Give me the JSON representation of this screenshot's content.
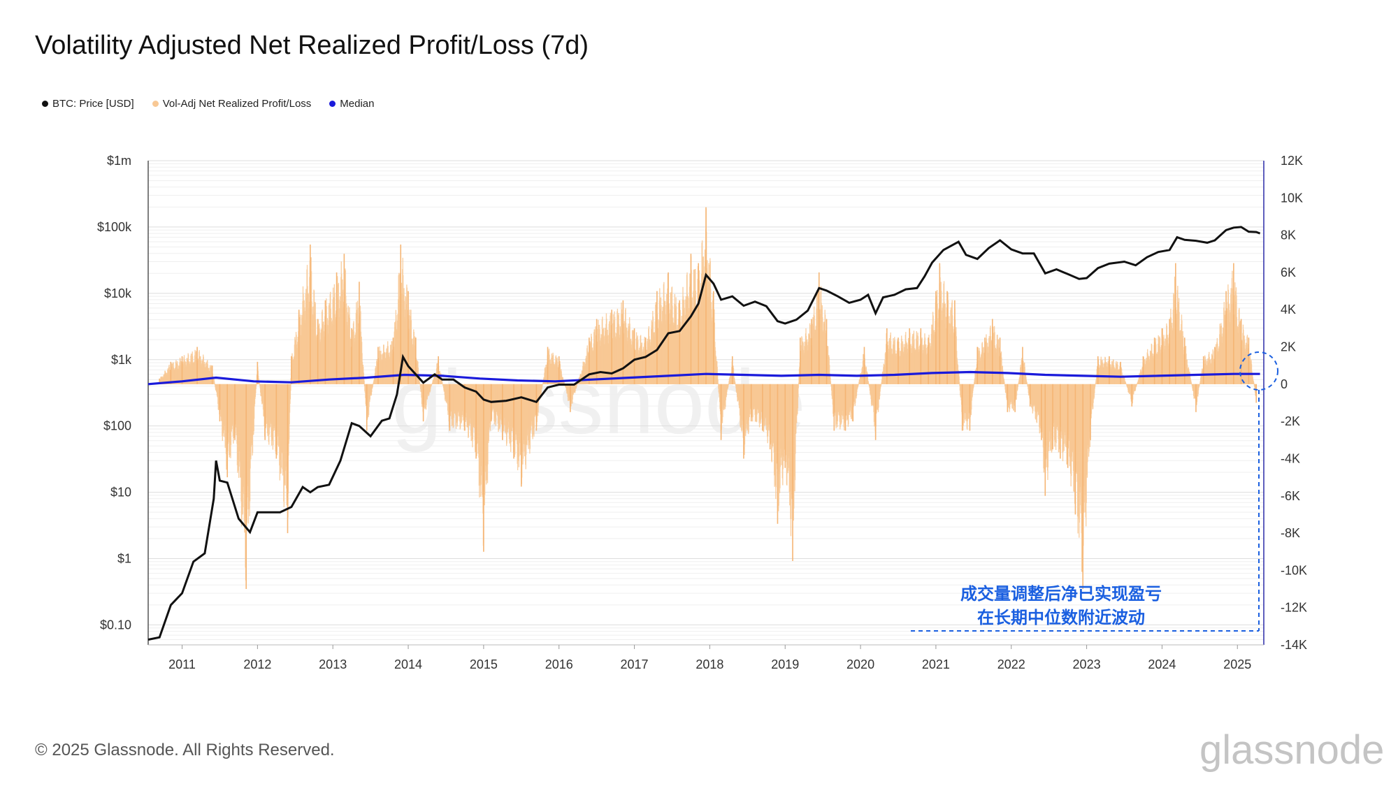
{
  "title": "Volatility Adjusted Net Realized Profit/Loss (7d)",
  "legend": [
    {
      "label": "BTC: Price [USD]",
      "color": "#111111"
    },
    {
      "label": "Vol-Adj Net Realized Profit/Loss",
      "color": "#f8c894"
    },
    {
      "label": "Median",
      "color": "#1a1adb"
    }
  ],
  "footer": "© 2025 Glassnode. All Rights Reserved.",
  "brand": "glassnode",
  "watermark": "glassnode",
  "annotation": {
    "line1": "成交量调整后净已实现盈亏",
    "line2": "在长期中位数附近波动",
    "color": "#1a5fe0"
  },
  "chart_data": {
    "type": "line",
    "title": "Volatility Adjusted Net Realized Profit/Loss (7d)",
    "x_range": [
      2010.55,
      2025.35
    ],
    "x_ticks": [
      "2011",
      "2012",
      "2013",
      "2014",
      "2015",
      "2016",
      "2017",
      "2018",
      "2019",
      "2020",
      "2021",
      "2022",
      "2023",
      "2024",
      "2025"
    ],
    "y_left": {
      "scale": "log",
      "range": [
        0.05,
        1000000
      ],
      "ticks": [
        {
          "value": 0.1,
          "label": "$0.10"
        },
        {
          "value": 1,
          "label": "$1"
        },
        {
          "value": 10,
          "label": "$10"
        },
        {
          "value": 100,
          "label": "$100"
        },
        {
          "value": 1000,
          "label": "$1k"
        },
        {
          "value": 10000,
          "label": "$10k"
        },
        {
          "value": 100000,
          "label": "$100k"
        },
        {
          "value": 1000000,
          "label": "$1m"
        }
      ]
    },
    "y_right": {
      "scale": "linear",
      "range": [
        -14000,
        12000
      ],
      "ticks": [
        {
          "value": 12000,
          "label": "12K"
        },
        {
          "value": 10000,
          "label": "10K"
        },
        {
          "value": 8000,
          "label": "8K"
        },
        {
          "value": 6000,
          "label": "6K"
        },
        {
          "value": 4000,
          "label": "4K"
        },
        {
          "value": 2000,
          "label": "2K"
        },
        {
          "value": 0,
          "label": "0"
        },
        {
          "value": -2000,
          "label": "-2K"
        },
        {
          "value": -4000,
          "label": "-4K"
        },
        {
          "value": -6000,
          "label": "-6K"
        },
        {
          "value": -8000,
          "label": "-8K"
        },
        {
          "value": -10000,
          "label": "-10K"
        },
        {
          "value": -12000,
          "label": "-12K"
        },
        {
          "value": -14000,
          "label": "-14K"
        }
      ]
    },
    "series": [
      {
        "name": "BTC: Price [USD]",
        "axis": "left",
        "color": "#111111",
        "points": [
          [
            2010.55,
            0.06
          ],
          [
            2010.7,
            0.065
          ],
          [
            2010.85,
            0.2
          ],
          [
            2011.0,
            0.3
          ],
          [
            2011.15,
            0.9
          ],
          [
            2011.3,
            1.2
          ],
          [
            2011.42,
            8
          ],
          [
            2011.45,
            30
          ],
          [
            2011.5,
            15
          ],
          [
            2011.6,
            14
          ],
          [
            2011.75,
            4
          ],
          [
            2011.9,
            2.5
          ],
          [
            2012.0,
            5
          ],
          [
            2012.15,
            5
          ],
          [
            2012.3,
            5
          ],
          [
            2012.45,
            6
          ],
          [
            2012.6,
            12
          ],
          [
            2012.7,
            10
          ],
          [
            2012.8,
            12
          ],
          [
            2012.95,
            13
          ],
          [
            2013.1,
            30
          ],
          [
            2013.25,
            110
          ],
          [
            2013.35,
            100
          ],
          [
            2013.5,
            70
          ],
          [
            2013.65,
            120
          ],
          [
            2013.75,
            130
          ],
          [
            2013.85,
            300
          ],
          [
            2013.93,
            1100
          ],
          [
            2014.0,
            800
          ],
          [
            2014.1,
            600
          ],
          [
            2014.2,
            450
          ],
          [
            2014.35,
            600
          ],
          [
            2014.45,
            500
          ],
          [
            2014.6,
            500
          ],
          [
            2014.75,
            380
          ],
          [
            2014.9,
            330
          ],
          [
            2015.0,
            250
          ],
          [
            2015.1,
            230
          ],
          [
            2015.3,
            240
          ],
          [
            2015.5,
            270
          ],
          [
            2015.7,
            230
          ],
          [
            2015.85,
            380
          ],
          [
            2016.0,
            420
          ],
          [
            2016.2,
            420
          ],
          [
            2016.4,
            600
          ],
          [
            2016.55,
            650
          ],
          [
            2016.7,
            620
          ],
          [
            2016.85,
            740
          ],
          [
            2017.0,
            1000
          ],
          [
            2017.15,
            1100
          ],
          [
            2017.3,
            1400
          ],
          [
            2017.45,
            2500
          ],
          [
            2017.6,
            2700
          ],
          [
            2017.75,
            4500
          ],
          [
            2017.85,
            7000
          ],
          [
            2017.95,
            19000
          ],
          [
            2018.05,
            14000
          ],
          [
            2018.15,
            8000
          ],
          [
            2018.3,
            9000
          ],
          [
            2018.45,
            6500
          ],
          [
            2018.6,
            7500
          ],
          [
            2018.75,
            6400
          ],
          [
            2018.9,
            3800
          ],
          [
            2019.0,
            3500
          ],
          [
            2019.15,
            4000
          ],
          [
            2019.3,
            5500
          ],
          [
            2019.45,
            12000
          ],
          [
            2019.55,
            11000
          ],
          [
            2019.7,
            9000
          ],
          [
            2019.85,
            7200
          ],
          [
            2020.0,
            8000
          ],
          [
            2020.1,
            9500
          ],
          [
            2020.2,
            5000
          ],
          [
            2020.3,
            8700
          ],
          [
            2020.45,
            9500
          ],
          [
            2020.6,
            11500
          ],
          [
            2020.75,
            12000
          ],
          [
            2020.85,
            18000
          ],
          [
            2020.95,
            29000
          ],
          [
            2021.1,
            45000
          ],
          [
            2021.3,
            60000
          ],
          [
            2021.4,
            38000
          ],
          [
            2021.55,
            33000
          ],
          [
            2021.7,
            48000
          ],
          [
            2021.85,
            63000
          ],
          [
            2022.0,
            46000
          ],
          [
            2022.15,
            40000
          ],
          [
            2022.3,
            40000
          ],
          [
            2022.45,
            20000
          ],
          [
            2022.6,
            23000
          ],
          [
            2022.75,
            19500
          ],
          [
            2022.9,
            16500
          ],
          [
            2023.0,
            17000
          ],
          [
            2023.15,
            24000
          ],
          [
            2023.3,
            28000
          ],
          [
            2023.5,
            30000
          ],
          [
            2023.65,
            26500
          ],
          [
            2023.8,
            35000
          ],
          [
            2023.95,
            42000
          ],
          [
            2024.1,
            45000
          ],
          [
            2024.2,
            70000
          ],
          [
            2024.3,
            64000
          ],
          [
            2024.45,
            62000
          ],
          [
            2024.6,
            58000
          ],
          [
            2024.7,
            63000
          ],
          [
            2024.85,
            90000
          ],
          [
            2024.95,
            98000
          ],
          [
            2025.05,
            100000
          ],
          [
            2025.15,
            85000
          ],
          [
            2025.25,
            84000
          ],
          [
            2025.3,
            80000
          ]
        ]
      },
      {
        "name": "Vol-Adj Net Realized Profit/Loss",
        "axis": "right",
        "color": "#f8c894",
        "render": "bars",
        "points": [
          [
            2010.7,
            300
          ],
          [
            2010.85,
            1200
          ],
          [
            2011.0,
            1500
          ],
          [
            2011.2,
            2000
          ],
          [
            2011.4,
            1000
          ],
          [
            2011.5,
            -2000
          ],
          [
            2011.6,
            -5000
          ],
          [
            2011.7,
            -3000
          ],
          [
            2011.85,
            -11000
          ],
          [
            2012.0,
            1200
          ],
          [
            2012.1,
            -3000
          ],
          [
            2012.25,
            -4000
          ],
          [
            2012.4,
            -8000
          ],
          [
            2012.45,
            1500
          ],
          [
            2012.55,
            4000
          ],
          [
            2012.7,
            7500
          ],
          [
            2012.8,
            3500
          ],
          [
            2012.9,
            4500
          ],
          [
            2013.05,
            6000
          ],
          [
            2013.15,
            7000
          ],
          [
            2013.25,
            3000
          ],
          [
            2013.35,
            5500
          ],
          [
            2013.45,
            -2500
          ],
          [
            2013.6,
            2000
          ],
          [
            2013.8,
            2500
          ],
          [
            2013.9,
            7500
          ],
          [
            2014.0,
            5000
          ],
          [
            2014.1,
            2500
          ],
          [
            2014.2,
            -2000
          ],
          [
            2014.4,
            1500
          ],
          [
            2014.55,
            -2500
          ],
          [
            2014.75,
            -2500
          ],
          [
            2014.9,
            -4000
          ],
          [
            2015.0,
            -9000
          ],
          [
            2015.1,
            -2000
          ],
          [
            2015.25,
            -3000
          ],
          [
            2015.4,
            -4000
          ],
          [
            2015.5,
            -5500
          ],
          [
            2015.7,
            -2500
          ],
          [
            2015.85,
            2000
          ],
          [
            2016.0,
            1500
          ],
          [
            2016.15,
            -1500
          ],
          [
            2016.4,
            2500
          ],
          [
            2016.5,
            3500
          ],
          [
            2016.7,
            4000
          ],
          [
            2016.85,
            4500
          ],
          [
            2017.0,
            3000
          ],
          [
            2017.15,
            2500
          ],
          [
            2017.3,
            5000
          ],
          [
            2017.45,
            6000
          ],
          [
            2017.6,
            4500
          ],
          [
            2017.75,
            7000
          ],
          [
            2017.85,
            6500
          ],
          [
            2017.95,
            9500
          ],
          [
            2018.05,
            5000
          ],
          [
            2018.15,
            -3000
          ],
          [
            2018.3,
            1500
          ],
          [
            2018.45,
            -4000
          ],
          [
            2018.55,
            -2000
          ],
          [
            2018.7,
            -2500
          ],
          [
            2018.8,
            -3500
          ],
          [
            2018.9,
            -7500
          ],
          [
            2019.0,
            -4500
          ],
          [
            2019.1,
            -9500
          ],
          [
            2019.2,
            2500
          ],
          [
            2019.35,
            3500
          ],
          [
            2019.45,
            6000
          ],
          [
            2019.55,
            3500
          ],
          [
            2019.65,
            -2500
          ],
          [
            2019.8,
            -2500
          ],
          [
            2019.9,
            -2000
          ],
          [
            2020.05,
            2000
          ],
          [
            2020.2,
            -3000
          ],
          [
            2020.35,
            3000
          ],
          [
            2020.5,
            2500
          ],
          [
            2020.65,
            3000
          ],
          [
            2020.8,
            3000
          ],
          [
            2020.9,
            2500
          ],
          [
            2021.0,
            5000
          ],
          [
            2021.05,
            6500
          ],
          [
            2021.15,
            5000
          ],
          [
            2021.25,
            4500
          ],
          [
            2021.35,
            -2500
          ],
          [
            2021.45,
            -2500
          ],
          [
            2021.55,
            2000
          ],
          [
            2021.65,
            2500
          ],
          [
            2021.75,
            3500
          ],
          [
            2021.85,
            2500
          ],
          [
            2021.95,
            -1500
          ],
          [
            2022.05,
            -1500
          ],
          [
            2022.15,
            2000
          ],
          [
            2022.25,
            -1200
          ],
          [
            2022.4,
            -3000
          ],
          [
            2022.45,
            -6000
          ],
          [
            2022.55,
            -3500
          ],
          [
            2022.65,
            -4000
          ],
          [
            2022.75,
            -4500
          ],
          [
            2022.85,
            -7000
          ],
          [
            2022.95,
            -11000
          ],
          [
            2023.05,
            -3000
          ],
          [
            2023.15,
            1500
          ],
          [
            2023.3,
            1500
          ],
          [
            2023.45,
            1200
          ],
          [
            2023.6,
            -1200
          ],
          [
            2023.75,
            1500
          ],
          [
            2023.9,
            2500
          ],
          [
            2024.0,
            3000
          ],
          [
            2024.1,
            3500
          ],
          [
            2024.18,
            6500
          ],
          [
            2024.3,
            2500
          ],
          [
            2024.45,
            -1500
          ],
          [
            2024.55,
            1500
          ],
          [
            2024.7,
            2000
          ],
          [
            2024.85,
            5000
          ],
          [
            2024.95,
            6500
          ],
          [
            2025.05,
            3500
          ],
          [
            2025.15,
            2500
          ],
          [
            2025.25,
            -1000
          ]
        ]
      },
      {
        "name": "Median",
        "axis": "right",
        "color": "#1a1adb",
        "points": [
          [
            2010.55,
            0
          ],
          [
            2011.0,
            150
          ],
          [
            2011.45,
            350
          ],
          [
            2011.95,
            150
          ],
          [
            2012.45,
            100
          ],
          [
            2012.95,
            250
          ],
          [
            2013.45,
            350
          ],
          [
            2013.95,
            500
          ],
          [
            2014.45,
            450
          ],
          [
            2014.95,
            300
          ],
          [
            2015.45,
            200
          ],
          [
            2015.95,
            150
          ],
          [
            2016.45,
            250
          ],
          [
            2016.95,
            350
          ],
          [
            2017.45,
            450
          ],
          [
            2017.95,
            550
          ],
          [
            2018.45,
            500
          ],
          [
            2018.95,
            450
          ],
          [
            2019.45,
            500
          ],
          [
            2019.95,
            450
          ],
          [
            2020.45,
            500
          ],
          [
            2020.95,
            600
          ],
          [
            2021.45,
            650
          ],
          [
            2021.95,
            600
          ],
          [
            2022.45,
            500
          ],
          [
            2022.95,
            450
          ],
          [
            2023.45,
            400
          ],
          [
            2023.95,
            450
          ],
          [
            2024.45,
            500
          ],
          [
            2024.95,
            550
          ],
          [
            2025.3,
            550
          ]
        ]
      }
    ]
  }
}
